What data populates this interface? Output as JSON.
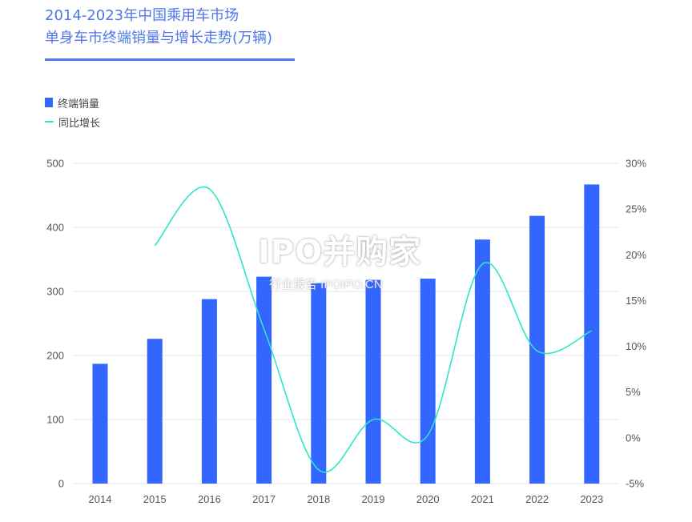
{
  "title": {
    "line1": "2014-2023年中国乘用车市场",
    "line2": "单身车市终端销量与增长走势(万辆)"
  },
  "watermark": {
    "main": "IPO并购家",
    "sub": "行业报告 IPOIPO.CN"
  },
  "colors": {
    "title": "#4f78e8",
    "bar": "#3366ff",
    "line": "#2ee6c8",
    "grid": "#e6e6e6"
  },
  "chart_data": {
    "type": "bar",
    "title": "2014-2023年中国乘用车市场 单身车市终端销量与增长走势(万辆)",
    "categories": [
      "2014",
      "2015",
      "2016",
      "2017",
      "2018",
      "2019",
      "2020",
      "2021",
      "2022",
      "2023"
    ],
    "series": [
      {
        "name": "终端销量",
        "type": "bar",
        "axis": "left",
        "values": [
          187,
          226,
          288,
          323,
          313,
          318,
          320,
          381,
          418,
          467
        ]
      },
      {
        "name": "同比增长",
        "type": "line",
        "axis": "right",
        "values": [
          null,
          21.0,
          27.2,
          11.9,
          -3.5,
          2.0,
          0.3,
          19.0,
          9.5,
          11.7
        ]
      }
    ],
    "y_left": {
      "min": 0,
      "max": 500,
      "ticks": [
        "0",
        "100",
        "200",
        "300",
        "400",
        "500"
      ]
    },
    "y_right": {
      "min": -5,
      "max": 30,
      "ticks": [
        "-5%",
        "0%",
        "5%",
        "10%",
        "15%",
        "20%",
        "25%",
        "30%"
      ]
    },
    "legend_position": "top-left",
    "grid": true
  }
}
